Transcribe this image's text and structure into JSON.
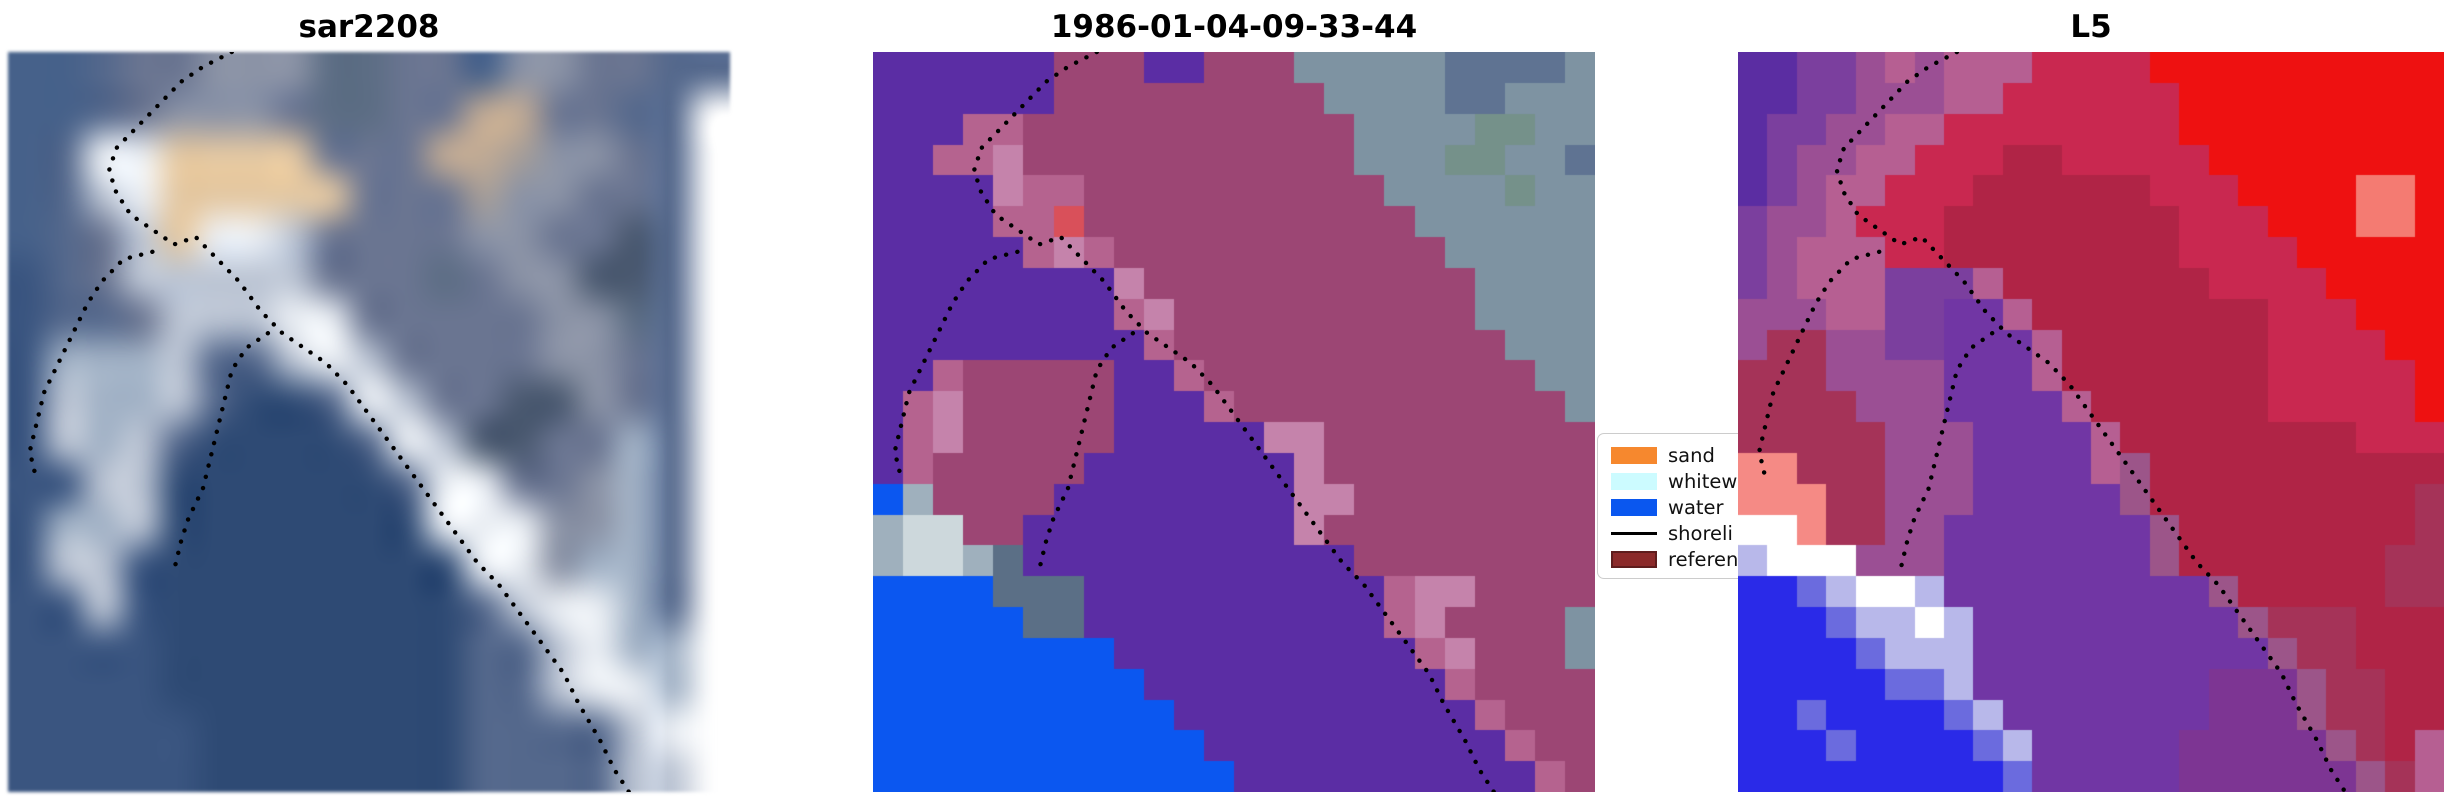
{
  "figure": {
    "background": "#ffffff"
  },
  "chart_data": {
    "type": "image-panels",
    "description": "Three co-registered coastal satellite image panels with dotted shoreline overlays and a classification legend",
    "panel_titles": [
      "sar2208",
      "1986-01-04-09-33-44",
      "L5"
    ],
    "legend_entries": [
      "sand",
      "whitew",
      "water",
      "shoreli",
      "referen"
    ],
    "legend_position": "between panel 2 and panel 3, clipped by panel 3"
  },
  "panels": [
    {
      "title": "sar2208",
      "render": "smooth",
      "palette": {
        "a": "#46618a",
        "b": "#3a5580",
        "c": "#2e4a74",
        "d": "#54688c",
        "e": "#6a7591",
        "f": "#8b93a6",
        "g": "#bcc5d4",
        "h": "#ecf0f5",
        "i": "#e4c8a2",
        "j": "#c2ab94",
        "l": "#5c6d84",
        "m": "#a2b2c6",
        "n": "#49586f",
        "o": "#a79e98"
      },
      "rows": [
        "aadeefffllee ffeedd",
        "aadefffelleejjeedd",
        "adhhiiiieeejjoffed",
        "adghiiiiieeeoffeed",
        "adegihhgeeeeffeend",
        "bdegggggeeeleffnnd",
        "bddeggghheeeeeffld",
        "bmmmgddghgeeeeffed",
        "bgmmgdccdhgeennfed",
        "bgmgdccccdhgnneemd",
        "bbggccccccdhheefmd",
        "bmmgccccccchhhffmd",
        "bggbcccccccchhfmmd",
        "bbgbccccccccdghhmd",
        "bbbbccccccccddghmm",
        "bbbbccccccccddghhm",
        "bbbbbcccccccddddgh",
        "bbbbbcccccccddddgg"
      ]
    },
    {
      "title": "1986-01-04-09-33-44",
      "render": "pixel",
      "palette": {
        "P": "#5b2da4",
        "C": "#9c4674",
        "E": "#b5638f",
        "K": "#c583ab",
        "R": "#d9505a",
        "G": "#7e93a2",
        "H": "#75918a",
        "J": "#5f7392",
        "W": "#0b57f0",
        "L": "#9fb0bd",
        "M": "#cdd8dc",
        "N": "#5b6f86"
      },
      "rows": [
        "PPPPPPCCCPPCCCGGGGGJJJJG",
        "PPPPPPCCCCCCCCCGGGGJJGGG",
        "PPPEECCCCCCCCCCCGGGGHHGG",
        "PPEEKCCCCCCCCCCCGGGHHGGJ",
        "PPPPKEECCCCCCCCCCGGGGHGG",
        "PPPPEERCCCCCCCCCCCGGGGGG",
        "PPPPPEKECCCCCCCCCCCGGGGG",
        "PPPPPPPPKCCCCCCCCCCCGGGG",
        "PPPPPPPPEKCCCCCCCCCCGGGG",
        "PPPPPPPPPECCCCCCCCCCCGGG",
        "PPECCCCCPPECCCCCCCCCCCGG",
        "PEKCCCCCPPPECCCCCCCCCCCG",
        "PEKCCCCCPPPPPKKCCCCCCCCC",
        "PECCCCCPPPPPPPKCCCCCCCCC",
        "WLCCCCPPPPPPPPKKCCCCCCCC",
        "LMMCCPPPPPPPPPKCCCCCCCCC",
        "LMMLNPPPPPPPPPPPCCCCCCCC",
        "WWWWNNNPPPPPPPPPPEKKCCCC",
        "WWWWWNNPPPPPPPPPPEKCCCCG",
        "WWWWWWWWPPPPPPPPPPEKCCCG",
        "WWWWWWWWWPPPPPPPPPPECCCC",
        "WWWWWWWWWWPPPPPPPPPPECCC",
        "WWWWWWWWWWWPPPPPPPPPPECC",
        "WWWWWWWWWWWWPPPPPPPPPPEC"
      ]
    },
    {
      "title": "L5",
      "render": "pixel",
      "palette": {
        "A": "#5b2da2",
        "B": "#7b3f9e",
        "C": "#9b4f94",
        "D": "#b65f92",
        "E": "#c92850",
        "F": "#b02446",
        "G": "#a53358",
        "H": "#ee1111",
        "I": "#f47b72",
        "J": "#7136a4",
        "K": "#7d3593",
        "L": "#f58a85",
        "M": "#ffffff",
        "N": "#2a2ae8",
        "O": "#6b6bde",
        "Q": "#b8b8ea",
        "S": "#9c5589"
      },
      "rows": [
        "AABBCDCDDDEEEEHHHHHHHHHH",
        "AABBCCCDDEEEEEEHHHHHHHHH",
        "ABBCCDDEEEEEEEEHHHHHHHHH",
        "ABCCDDEEEFFEEEEEHHHHHHHH",
        "ABCDDEEEFFFFFFEEEHHHHIIH",
        "BCCDEEEFFFFFFFFEEEHHHIIH",
        "BCDDDEEFFFFFFFFEEEEHHHHH",
        "BCDDDBBBDFFFFFFFEEEEHHHH",
        "CCCDDBBJJDFFFFFFFFEEEHHH",
        "CGGCCBBJJJDFFFFFFFEEEEHH",
        "GGGCCCCJJJDFFFFFFFEEEEEH",
        "GGGGCCCJJJJDFFFFFFEEEEEH",
        "GGGGGCCCJJJJDFFFFFFFFEEE",
        "LLGGGCCCJJJJDSFFFFFFFFFF",
        "LLLGGCCCJJJJJSFFFFFFFFFG",
        "MMLGGCCJJJJJJJSFFFFFFFFG",
        "QMMMCCCJJJJJJJSFFFFFFFGG",
        "NNOQMMQJJJJJJJJJSFFFFFGG",
        "NNNOQQMQJJJJJJJJJSGGGFFF",
        "NNNNOQQQJJJJJJJJJJSGGFFF",
        "NNNNNOOQJJJJJJJJKKKSGGFF",
        "NNONNNNOQJJJJJJJKKKSGGFF",
        "NNNONNNNOQJJJJJKKKKKSGFD",
        "NNNNNNNNNOJJJJJKKKKKKSGD"
      ]
    }
  ],
  "shoreline": {
    "color": "#000000",
    "dot_size": 4.4,
    "spacing": 11.5,
    "lines": [
      [
        [
          31,
          0
        ],
        [
          27,
          2
        ],
        [
          24,
          4
        ],
        [
          21,
          7
        ],
        [
          18,
          10
        ],
        [
          15,
          13
        ],
        [
          14,
          16
        ],
        [
          15,
          19
        ],
        [
          17,
          22
        ],
        [
          20,
          24
        ],
        [
          23,
          26
        ],
        [
          26,
          25
        ],
        [
          29,
          28
        ],
        [
          32,
          31
        ],
        [
          35,
          35
        ],
        [
          38,
          38
        ],
        [
          41,
          40
        ],
        [
          44,
          42
        ],
        [
          47,
          45
        ],
        [
          50,
          49
        ],
        [
          53,
          53
        ],
        [
          56,
          57
        ],
        [
          59,
          61
        ],
        [
          62,
          65
        ],
        [
          65,
          69
        ],
        [
          68,
          72
        ],
        [
          71,
          76
        ],
        [
          74,
          80
        ],
        [
          77,
          84
        ],
        [
          79,
          88
        ],
        [
          82,
          93
        ],
        [
          84,
          97
        ],
        [
          86,
          100
        ]
      ],
      [
        [
          20,
          27
        ],
        [
          16,
          28
        ],
        [
          13,
          31
        ],
        [
          11,
          34
        ],
        [
          9,
          38
        ],
        [
          7,
          42
        ],
        [
          5,
          46
        ],
        [
          4,
          50
        ],
        [
          3,
          54
        ],
        [
          4,
          58
        ]
      ],
      [
        [
          36,
          38
        ],
        [
          33,
          40
        ],
        [
          31,
          43
        ],
        [
          30,
          47
        ],
        [
          29,
          51
        ],
        [
          28,
          55
        ],
        [
          27,
          59
        ],
        [
          25,
          63
        ],
        [
          24,
          66
        ],
        [
          23,
          70
        ]
      ]
    ]
  },
  "legend": {
    "items": [
      {
        "label": "sand",
        "type": "patch",
        "color": "#f6882e"
      },
      {
        "label": "whitew",
        "type": "patch",
        "color": "#ccfbff"
      },
      {
        "label": "water",
        "type": "patch",
        "color": "#0a57ef"
      },
      {
        "label": "shoreli",
        "type": "line",
        "color": "#000000"
      },
      {
        "label": "referen",
        "type": "patch",
        "color": "#8b2a2a",
        "border": "#5e1d1d"
      }
    ]
  }
}
